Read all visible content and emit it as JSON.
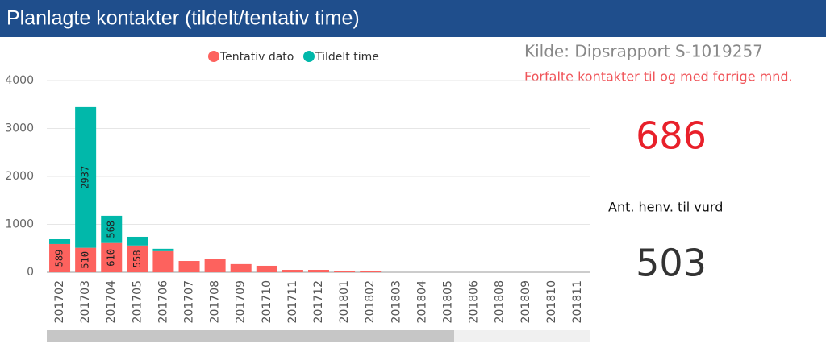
{
  "chart_data": {
    "type": "stacked_bar",
    "title": "Planlagte kontakter (tildelt/tentativ time)",
    "categories": [
      "201702",
      "201703",
      "201704",
      "201705",
      "201706",
      "201707",
      "201708",
      "201709",
      "201710",
      "201711",
      "201712",
      "201801",
      "201802",
      "201803",
      "201804",
      "201805",
      "201806",
      "201808",
      "201809",
      "201810",
      "201811"
    ],
    "series": [
      {
        "name": "Tentativ dato",
        "color": "#fd625e",
        "values": [
          589,
          510,
          610,
          558,
          440,
          235,
          270,
          170,
          135,
          50,
          50,
          30,
          30,
          0,
          0,
          0,
          0,
          0,
          0,
          0,
          0
        ]
      },
      {
        "name": "Tildelt time",
        "color": "#01b8aa",
        "values": [
          100,
          2937,
          568,
          182,
          50,
          0,
          0,
          0,
          0,
          0,
          0,
          0,
          0,
          0,
          0,
          0,
          0,
          0,
          0,
          0,
          0
        ]
      }
    ],
    "ylim": [
      0,
      4000
    ],
    "yticks": [
      0,
      1000,
      2000,
      3000,
      4000
    ],
    "grid": true,
    "legend": "top"
  },
  "cards": {
    "source": "Kilde: Dipsrapport S-1019257",
    "overdue_caption": "Forfalte kontakter til og med forrige mnd.",
    "overdue_value": "686",
    "referral_caption": "Ant. henv. til vurd",
    "referral_value": "503"
  }
}
